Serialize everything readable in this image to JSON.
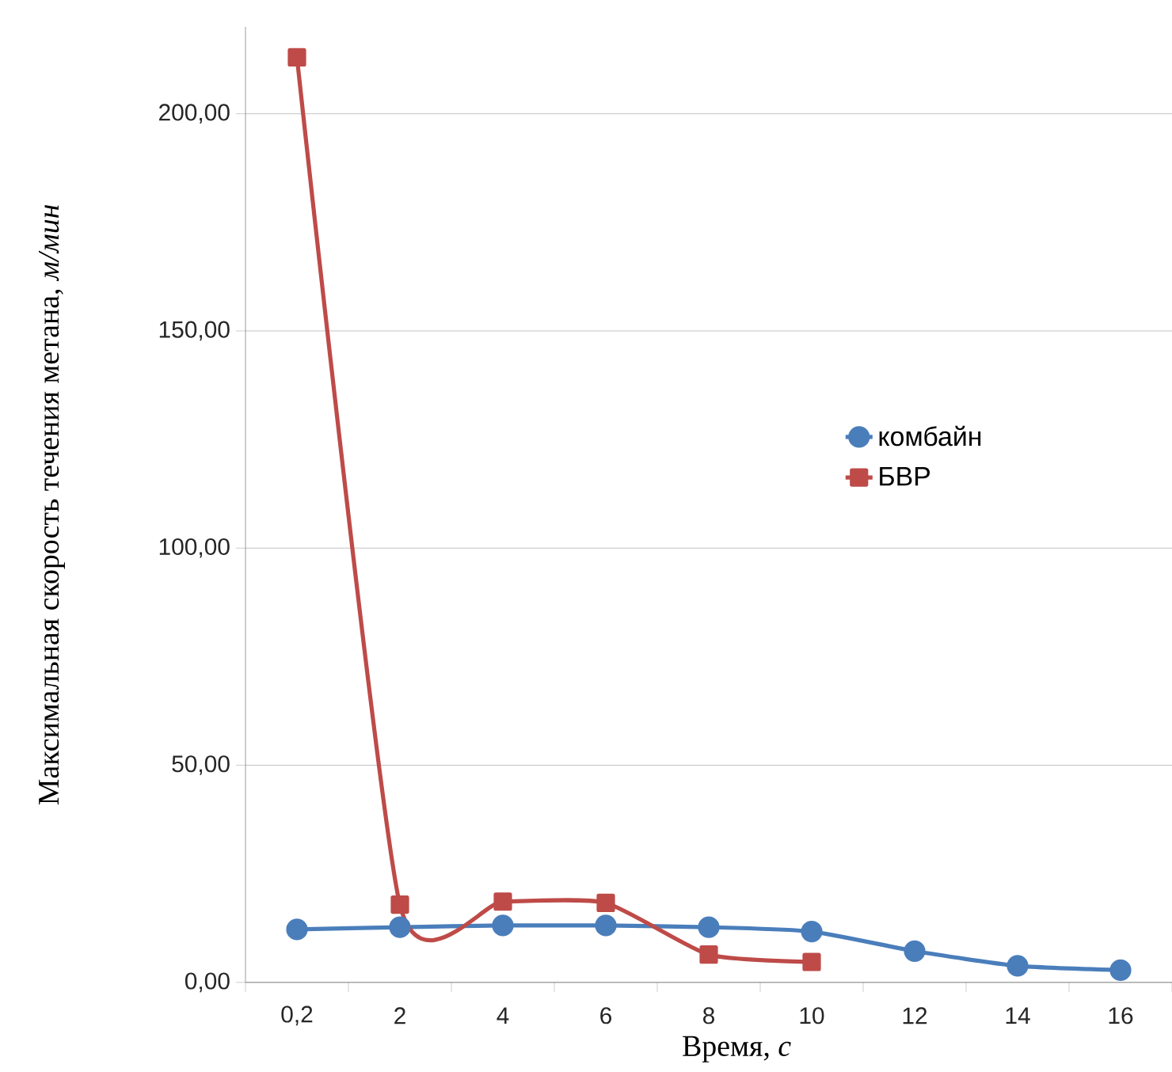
{
  "chart_data": {
    "type": "line",
    "xlabel": "Время, *с*",
    "ylabel": "Максимальная скорость течения метана, *м/мин*",
    "categories": [
      "0,2",
      "2",
      "4",
      "6",
      "8",
      "10",
      "12",
      "14",
      "16"
    ],
    "series": [
      {
        "name": "комбайн",
        "color": "#4a7ebb",
        "marker": "circle",
        "values": [
          12.2,
          12.7,
          13.1,
          13.1,
          12.7,
          11.7,
          7.2,
          3.8,
          2.8
        ]
      },
      {
        "name": "БВР",
        "color": "#be4b48",
        "marker": "square",
        "values": [
          213,
          17.9,
          18.6,
          18.3,
          6.4,
          4.7,
          null,
          null,
          null
        ]
      }
    ],
    "ylim": [
      0,
      220
    ],
    "yticks": [
      {
        "value": 0,
        "label": "0,00"
      },
      {
        "value": 50,
        "label": "50,00"
      },
      {
        "value": 100,
        "label": "100,00"
      },
      {
        "value": 150,
        "label": "150,00"
      },
      {
        "value": 200,
        "label": "200,00"
      }
    ],
    "grid": "y",
    "legend": "right",
    "line_style": "solid"
  }
}
